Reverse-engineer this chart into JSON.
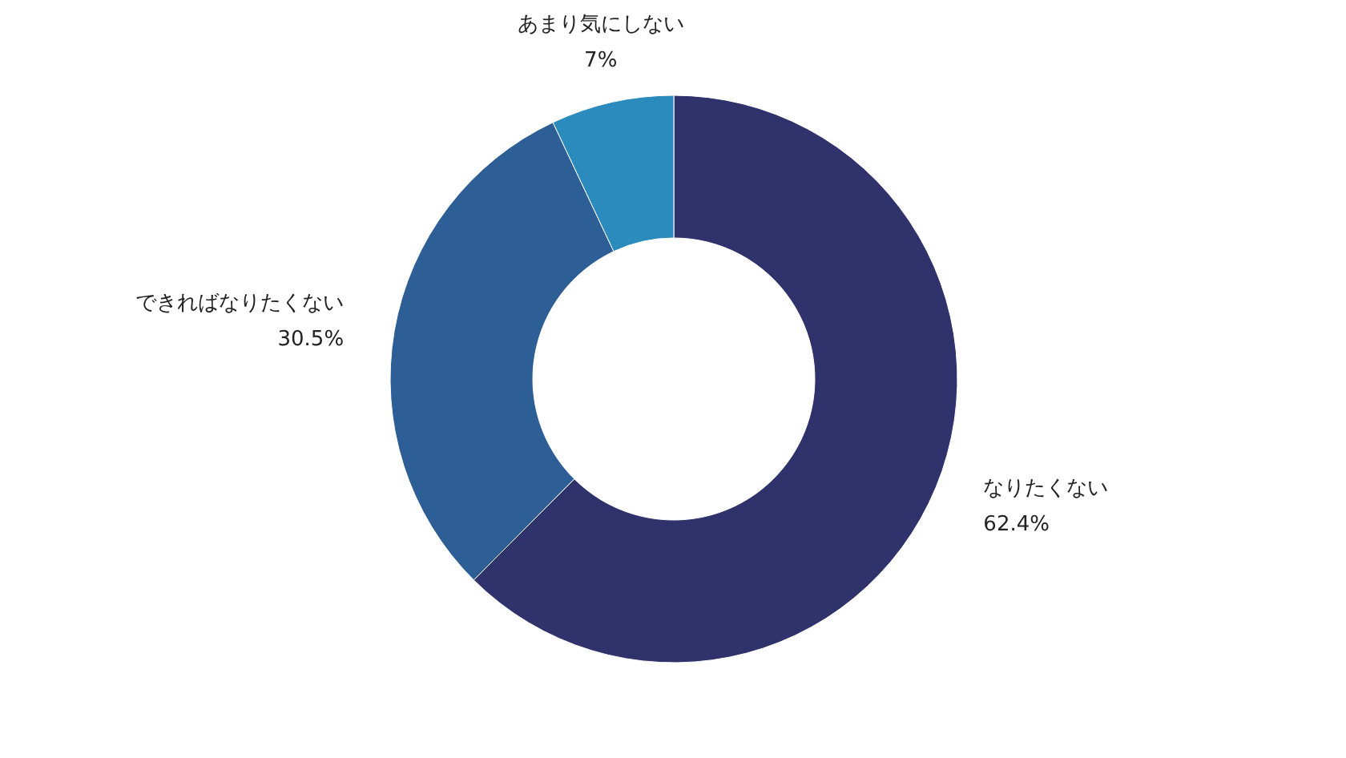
{
  "chart_data": {
    "type": "donut",
    "categories": [
      "なりたくない",
      "できればなりたくない",
      "あまり気にしない"
    ],
    "values": [
      62.4,
      30.5,
      7
    ],
    "value_labels": [
      "62.4%",
      "30.5%",
      "7%"
    ],
    "colors": [
      "#30336b",
      "#2d5f96",
      "#2b8bbd"
    ]
  }
}
